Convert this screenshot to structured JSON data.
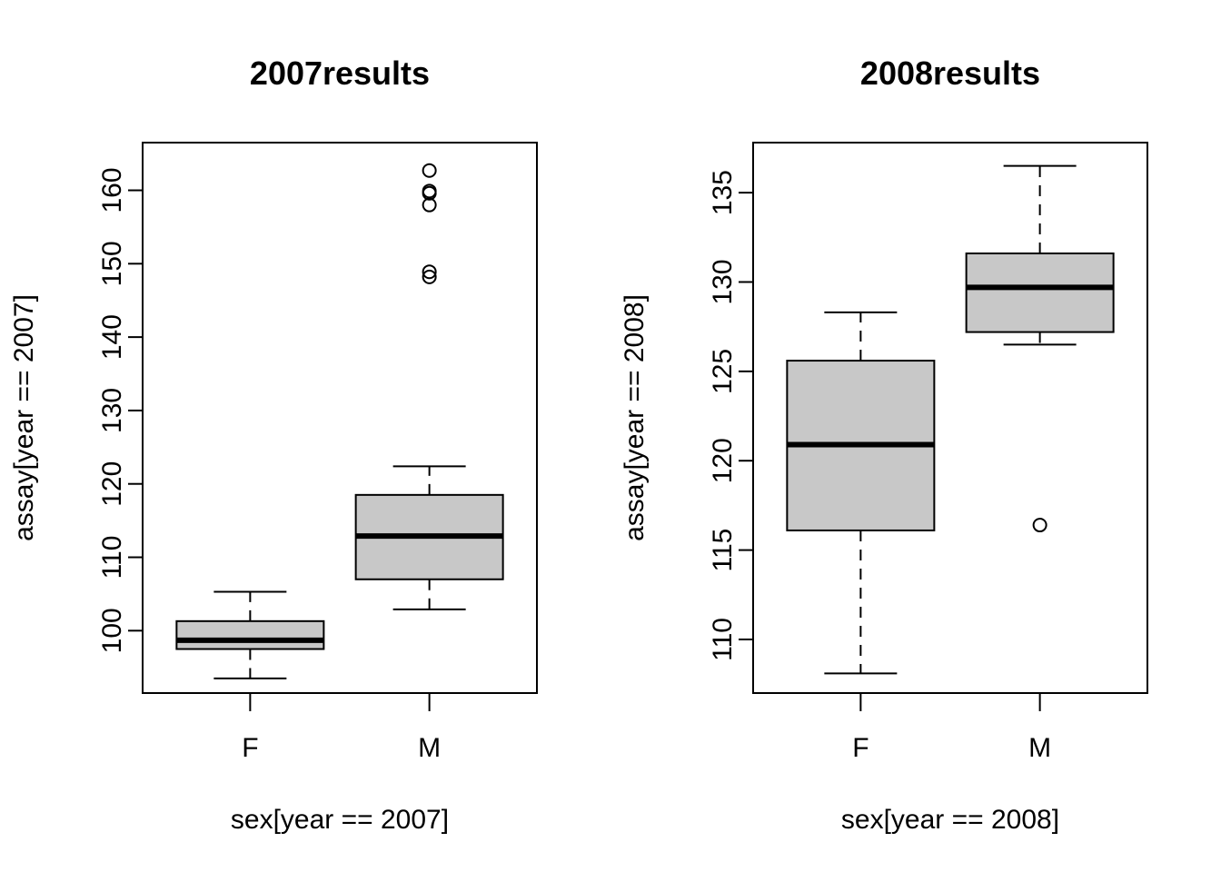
{
  "colors": {
    "box_fill": "#c8c8c8",
    "line": "#000000",
    "background": "#ffffff"
  },
  "chart_data": [
    {
      "type": "boxplot",
      "title": "2007results",
      "xlabel": "sex[year == 2007]",
      "ylabel": "assay[year == 2007]",
      "categories": [
        "F",
        "M"
      ],
      "ylim": [
        91.5,
        166.5
      ],
      "yticks": [
        100,
        110,
        120,
        130,
        140,
        150,
        160
      ],
      "boxes": [
        {
          "category": "F",
          "whisker_low": 93.5,
          "q1": 97.5,
          "median": 98.7,
          "q3": 101.3,
          "whisker_high": 105.3,
          "outliers": []
        },
        {
          "category": "M",
          "whisker_low": 102.9,
          "q1": 107.0,
          "median": 112.9,
          "q3": 118.5,
          "whisker_high": 122.4,
          "outliers": [
            148.2,
            148.9,
            158.0,
            159.6,
            159.9,
            162.7
          ]
        }
      ],
      "grid": false,
      "legend": "none"
    },
    {
      "type": "boxplot",
      "title": "2008results",
      "xlabel": "sex[year == 2008]",
      "ylabel": "assay[year == 2008]",
      "categories": [
        "F",
        "M"
      ],
      "ylim": [
        107.0,
        137.8
      ],
      "yticks": [
        110,
        115,
        120,
        125,
        130,
        135
      ],
      "boxes": [
        {
          "category": "F",
          "whisker_low": 108.1,
          "q1": 116.1,
          "median": 120.9,
          "q3": 125.6,
          "whisker_high": 128.3,
          "outliers": []
        },
        {
          "category": "M",
          "whisker_low": 126.5,
          "q1": 127.2,
          "median": 129.7,
          "q3": 131.6,
          "whisker_high": 136.5,
          "outliers": [
            116.4
          ]
        }
      ],
      "grid": false,
      "legend": "none"
    }
  ]
}
